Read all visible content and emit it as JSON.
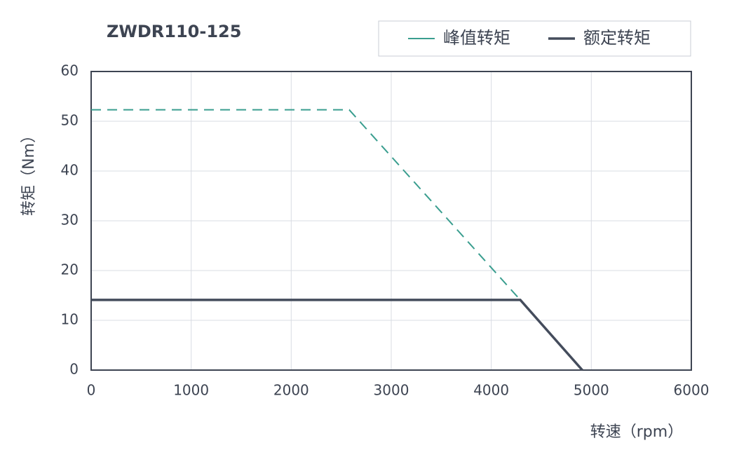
{
  "chart_data": {
    "type": "line",
    "title": "ZWDR110-125",
    "x_label": "转速（rpm）",
    "y_label": "转矩（Nm）",
    "series": [
      {
        "name": "峰值转矩",
        "color": "#3a9e8f",
        "dashed": true,
        "x": [
          0,
          2580,
          4290
        ],
        "values": [
          52.3,
          52.3,
          14.1
        ]
      },
      {
        "name": "额定转矩",
        "color": "#444c5c",
        "dashed": false,
        "x": [
          0,
          4290,
          4910
        ],
        "values": [
          14.1,
          14.1,
          0
        ]
      }
    ],
    "xlim": [
      0,
      6000
    ],
    "xticks": [
      0,
      1000,
      2000,
      3000,
      4000,
      5000,
      6000
    ],
    "ylim": [
      0,
      60
    ],
    "yticks": [
      0,
      10,
      20,
      30,
      40,
      50,
      60
    ],
    "grid": true,
    "legend": "top-right"
  }
}
